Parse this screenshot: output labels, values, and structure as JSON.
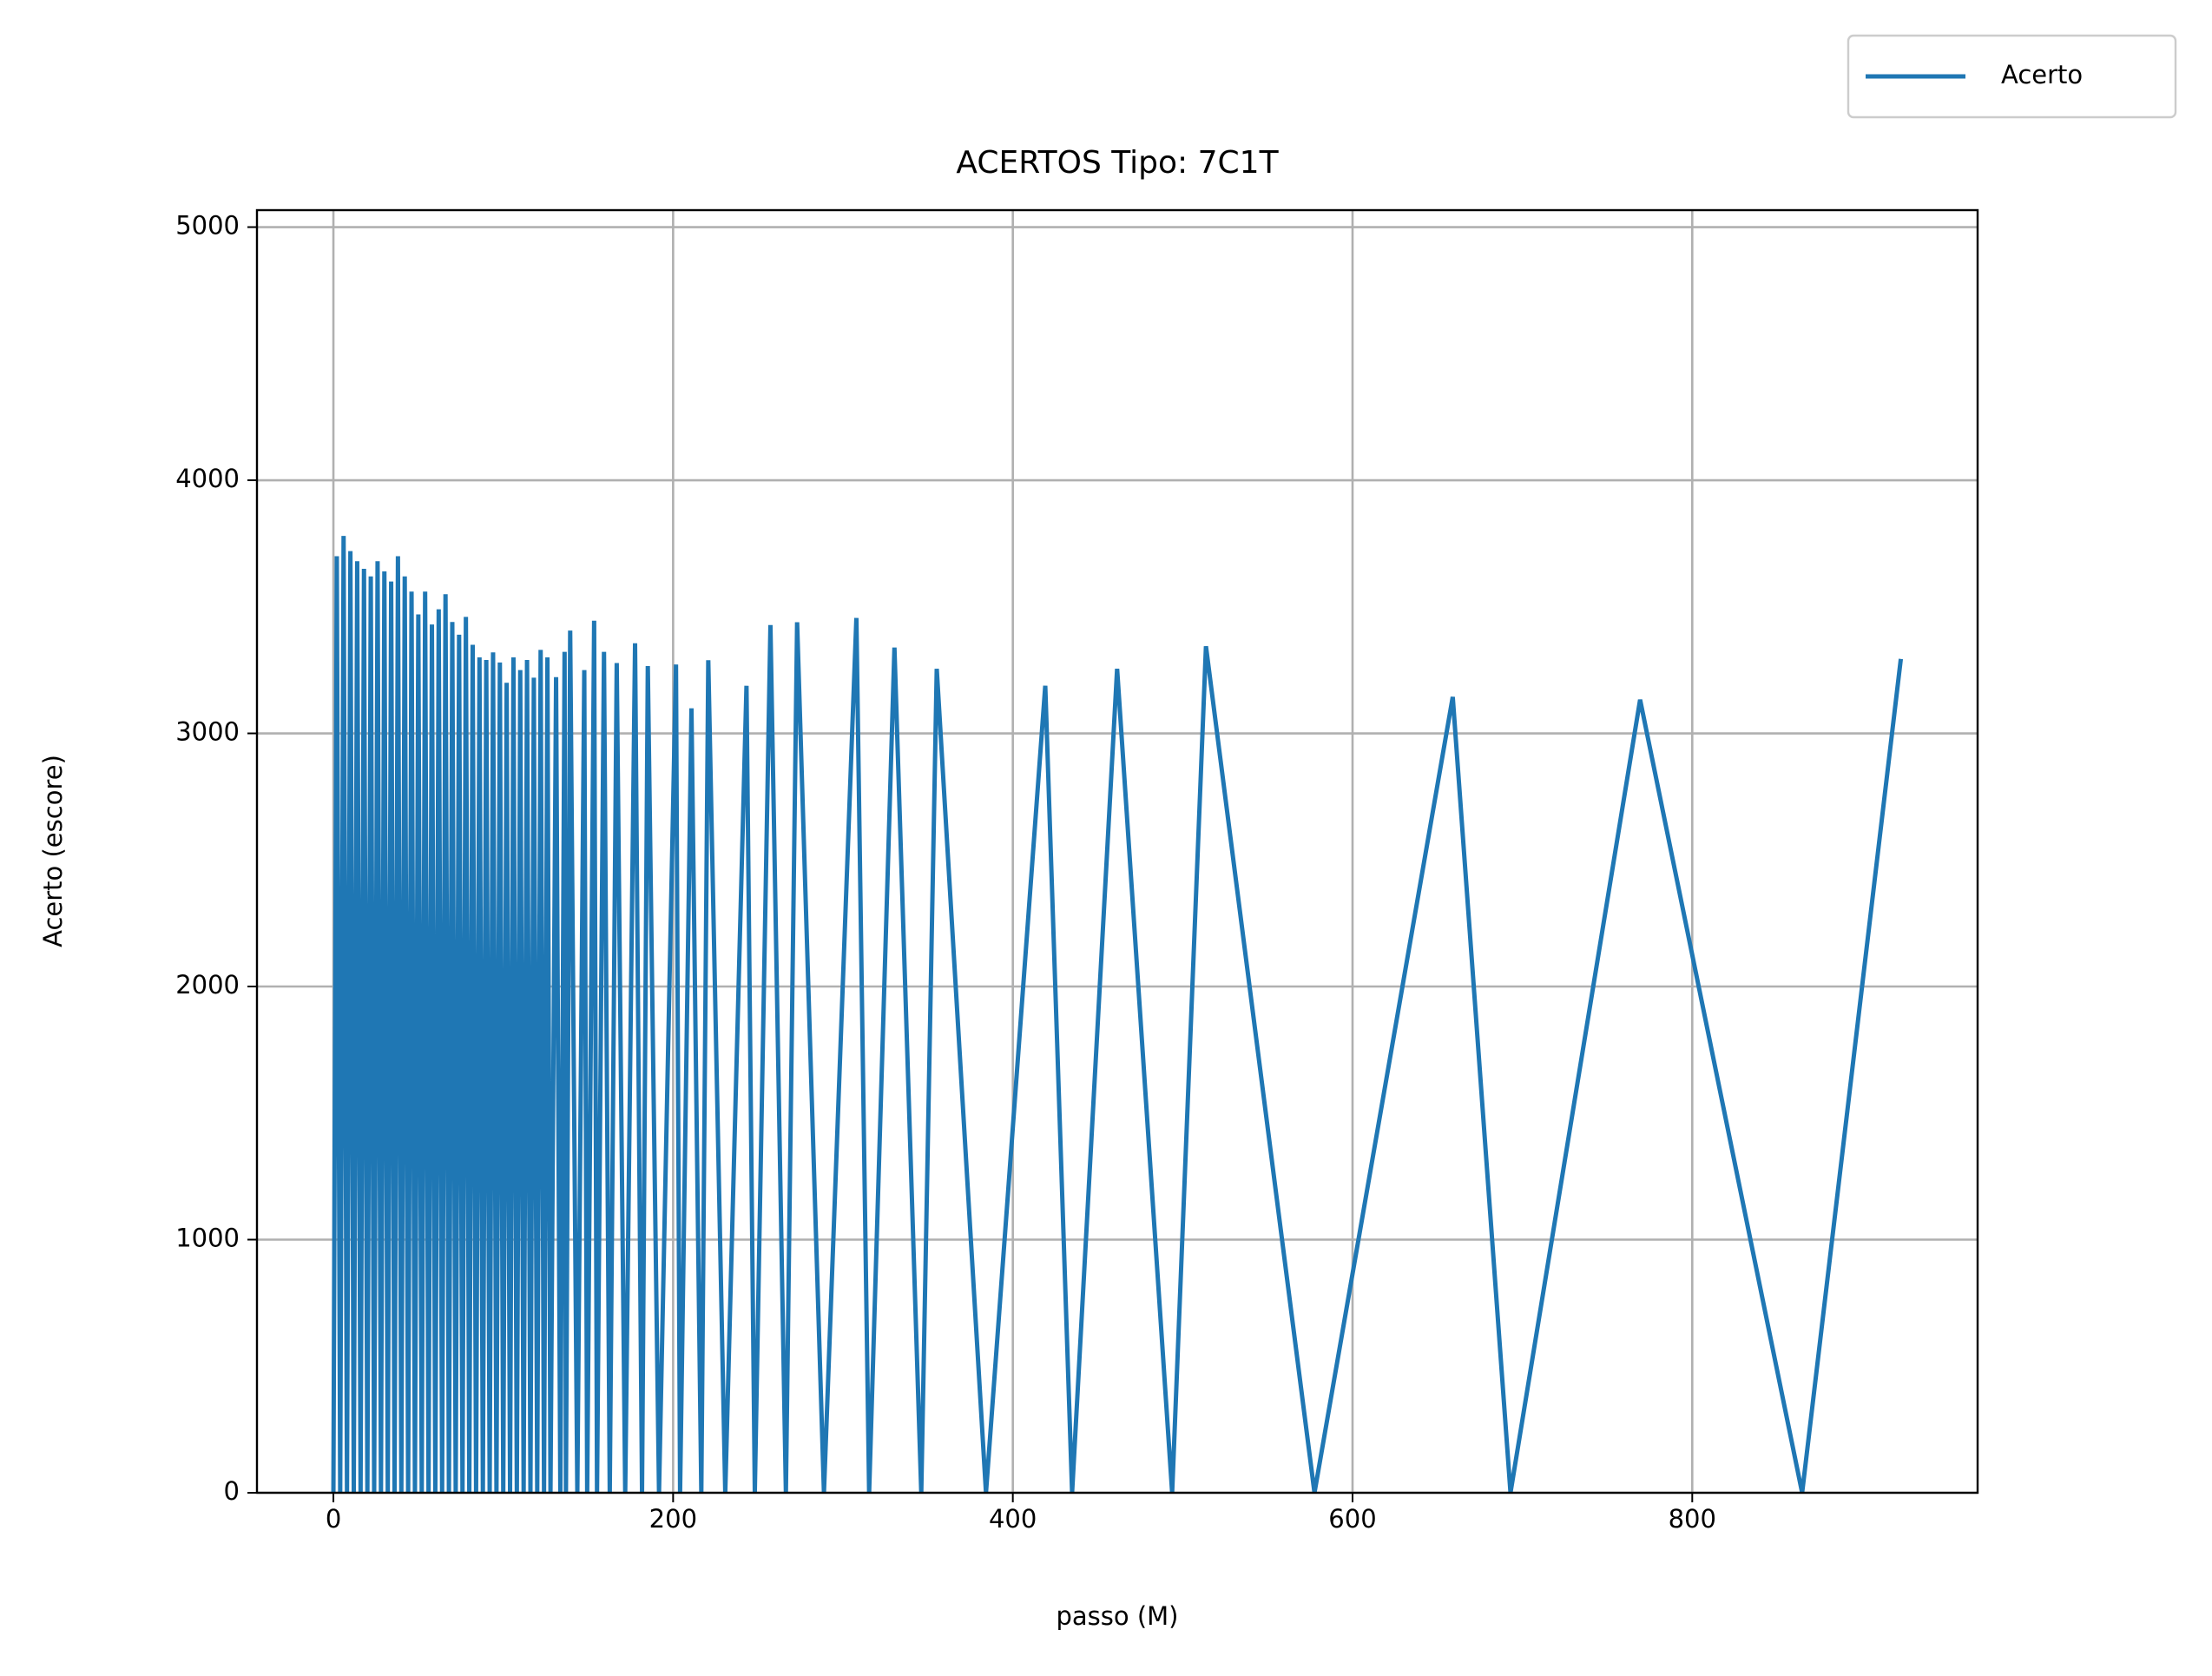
{
  "chart_data": {
    "type": "line",
    "title": "ACERTOS Tipo: 7C1T",
    "x_label": "passo (M)",
    "y_label": "Acerto (escore)",
    "x": [
      0,
      2,
      4,
      6,
      8,
      10,
      12,
      14,
      16,
      18,
      20,
      22,
      24,
      26,
      28,
      30,
      32,
      34,
      36,
      38,
      40,
      42,
      44,
      46,
      48,
      50,
      52,
      54,
      56,
      58,
      60,
      62,
      64,
      66,
      68,
      70,
      72,
      74,
      76,
      78,
      80,
      82,
      84,
      86,
      88,
      90,
      92,
      94,
      96,
      98,
      100,
      102,
      104,
      106,
      108,
      110,
      112,
      114,
      116,
      118,
      120,
      122,
      124,
      126,
      127.8,
      131.1,
      133.6,
      136.1,
      136.9,
      139.4,
      143.6,
      147.7,
      149.4,
      153.5,
      155.2,
      159.3,
      162.7,
      166.8,
      171.8,
      177.6,
      181.7,
      185.1,
      191.7,
      201.7,
      204.1,
      210.8,
      216.6,
      220.7,
      230.7,
      243.2,
      248.1,
      257.3,
      266.4,
      273,
      288.8,
      307.9,
      315.4,
      330.3,
      346.1,
      355.2,
      384.2,
      419.1,
      434.9,
      461.4,
      493.8,
      513.7,
      577.6,
      659,
      693,
      769.3,
      864.7,
      922.8
    ],
    "series": [
      {
        "name": "Acerto",
        "color": "#1f77b4",
        "values": [
          0,
          3700,
          0,
          3780,
          0,
          3720,
          0,
          3680,
          0,
          3650,
          0,
          3620,
          0,
          3680,
          0,
          3640,
          0,
          3600,
          0,
          3700,
          0,
          3620,
          0,
          3560,
          0,
          3470,
          0,
          3560,
          0,
          3430,
          0,
          3490,
          0,
          3550,
          0,
          3440,
          0,
          3390,
          0,
          3460,
          0,
          3350,
          0,
          3300,
          0,
          3290,
          0,
          3320,
          0,
          3280,
          0,
          3200,
          0,
          3300,
          0,
          3250,
          0,
          3290,
          0,
          3220,
          0,
          3330,
          0,
          3300,
          0,
          3222,
          0,
          3322,
          0,
          3406,
          0,
          3250,
          0,
          3445,
          0,
          3322,
          0,
          3278,
          0,
          3356,
          0,
          3266,
          0,
          3272,
          0,
          3099,
          0,
          3289,
          0,
          3188,
          0,
          3428,
          0,
          3439,
          0,
          3456,
          0,
          3339,
          0,
          3255,
          0,
          3188,
          0,
          3255,
          0,
          3344,
          0,
          3144,
          0,
          3133,
          0,
          3294
        ]
      }
    ],
    "xlim": [
      -45,
      968
    ],
    "ylim": [
      0,
      5067
    ],
    "xticks": [
      0,
      200,
      400,
      600,
      800
    ],
    "yticks": [
      0,
      1000,
      2000,
      3000,
      4000,
      5000
    ],
    "grid": true,
    "legend_loc": "upper right"
  }
}
